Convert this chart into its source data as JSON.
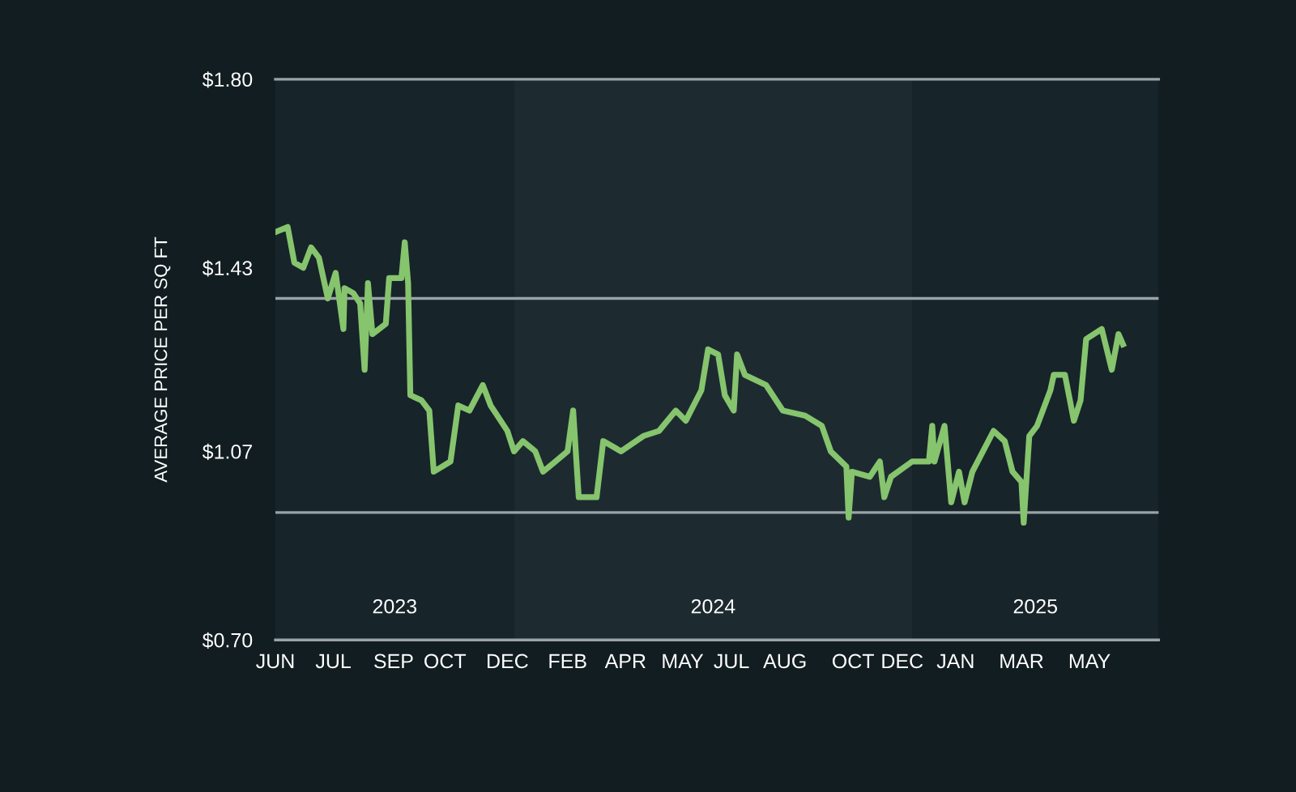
{
  "chart_data": {
    "type": "line",
    "ylabel": "AVERAGE PRICE PER SQ FT",
    "xlim": [
      "2023-06-01",
      "2025-08-01"
    ],
    "xticks": [
      {
        "value": "2023-06-01",
        "label": "JUN"
      },
      {
        "value": "2023-07-23",
        "label": "JUL"
      },
      {
        "value": "2023-09-15",
        "label": "SEP"
      },
      {
        "value": "2023-10-31",
        "label": "OCT"
      },
      {
        "value": "2023-12-26",
        "label": "DEC"
      },
      {
        "value": "2024-02-18",
        "label": "FEB"
      },
      {
        "value": "2024-04-10",
        "label": "APR"
      },
      {
        "value": "2024-05-31",
        "label": "MAY"
      },
      {
        "value": "2024-07-14",
        "label": "JUL"
      },
      {
        "value": "2024-08-31",
        "label": "AUG"
      },
      {
        "value": "2024-10-31",
        "label": "OCT"
      },
      {
        "value": "2024-12-14",
        "label": "DEC"
      },
      {
        "value": "2025-01-31",
        "label": "JAN"
      },
      {
        "value": "2025-03-31",
        "label": "MAR"
      },
      {
        "value": "2025-05-31",
        "label": "MAY"
      }
    ],
    "ylim": [
      0.7,
      1.8
    ],
    "yticks": [
      {
        "value": 0.7,
        "label": "$0.70"
      },
      {
        "value": 1.07,
        "label": "$1.07"
      },
      {
        "value": 1.43,
        "label": "$1.43"
      },
      {
        "value": 1.8,
        "label": "$1.80"
      }
    ],
    "grid": false,
    "marker": "none",
    "line_style": "solid",
    "bands": [
      {
        "axis": "x",
        "from": "2023-06-01",
        "to": "2024-01-01",
        "label": "2023",
        "color": "#17242a"
      },
      {
        "axis": "x",
        "from": "2024-01-01",
        "to": "2024-12-23",
        "label": "2024",
        "color": "#1d2b31"
      },
      {
        "axis": "x",
        "from": "2024-12-23",
        "to": "2025-08-01",
        "label": "2025",
        "color": "#17242a"
      }
    ],
    "ref_lines": [
      {
        "axis": "y",
        "value": 1.37,
        "color": "#9aa3a6"
      },
      {
        "axis": "y",
        "value": 0.95,
        "color": "#9aa3a6"
      }
    ],
    "series": [
      {
        "color": "#86c46d",
        "x": [
          "2023-06-01",
          "2023-06-12",
          "2023-06-18",
          "2023-06-26",
          "2023-07-03",
          "2023-07-10",
          "2023-07-18",
          "2023-07-25",
          "2023-08-01",
          "2023-08-02",
          "2023-08-10",
          "2023-08-16",
          "2023-08-20",
          "2023-08-23",
          "2023-08-27",
          "2023-09-08",
          "2023-09-11",
          "2023-09-22",
          "2023-09-25",
          "2023-09-28",
          "2023-09-30",
          "2023-10-10",
          "2023-10-17",
          "2023-10-21",
          "2023-11-05",
          "2023-11-12",
          "2023-11-22",
          "2023-12-04",
          "2023-12-11",
          "2023-12-26",
          "2024-01-01",
          "2024-01-09",
          "2024-01-20",
          "2024-01-27",
          "2024-02-07",
          "2024-02-18",
          "2024-02-23",
          "2024-02-28",
          "2024-03-15",
          "2024-03-21",
          "2024-04-06",
          "2024-04-26",
          "2024-05-10",
          "2024-05-25",
          "2024-06-03",
          "2024-06-17",
          "2024-06-23",
          "2024-07-02",
          "2024-07-08",
          "2024-07-16",
          "2024-07-19",
          "2024-07-26",
          "2024-08-14",
          "2024-08-29",
          "2024-09-18",
          "2024-10-03",
          "2024-10-11",
          "2024-10-25",
          "2024-10-27",
          "2024-10-30",
          "2024-11-15",
          "2024-11-24",
          "2024-11-28",
          "2024-12-04",
          "2024-12-23",
          "2025-01-07",
          "2025-01-10",
          "2025-01-12",
          "2025-01-21",
          "2025-01-27",
          "2025-02-03",
          "2025-02-08",
          "2025-02-15",
          "2025-03-06",
          "2025-03-16",
          "2025-03-23",
          "2025-03-31",
          "2025-04-02",
          "2025-04-07",
          "2025-04-14",
          "2025-04-26",
          "2025-04-29",
          "2025-05-09",
          "2025-05-17",
          "2025-05-23",
          "2025-05-28",
          "2025-06-04",
          "2025-06-11",
          "2025-06-20",
          "2025-06-26",
          "2025-06-30"
        ],
        "values": [
          1.5,
          1.51,
          1.44,
          1.43,
          1.47,
          1.45,
          1.37,
          1.42,
          1.31,
          1.39,
          1.38,
          1.36,
          1.23,
          1.4,
          1.3,
          1.32,
          1.41,
          1.41,
          1.48,
          1.4,
          1.18,
          1.17,
          1.15,
          1.03,
          1.05,
          1.16,
          1.15,
          1.2,
          1.16,
          1.11,
          1.07,
          1.09,
          1.07,
          1.03,
          1.05,
          1.07,
          1.15,
          0.98,
          0.98,
          1.09,
          1.07,
          1.1,
          1.11,
          1.15,
          1.13,
          1.19,
          1.27,
          1.26,
          1.18,
          1.15,
          1.26,
          1.22,
          1.2,
          1.15,
          1.14,
          1.12,
          1.07,
          1.04,
          0.94,
          1.03,
          1.02,
          1.05,
          0.98,
          1.02,
          1.05,
          1.05,
          1.12,
          1.05,
          1.12,
          0.97,
          1.03,
          0.97,
          1.03,
          1.11,
          1.09,
          1.03,
          1.01,
          0.93,
          1.1,
          1.12,
          1.19,
          1.22,
          1.22,
          1.13,
          1.17,
          1.29,
          1.3,
          1.31,
          1.23,
          1.3,
          1.28
        ]
      }
    ]
  }
}
